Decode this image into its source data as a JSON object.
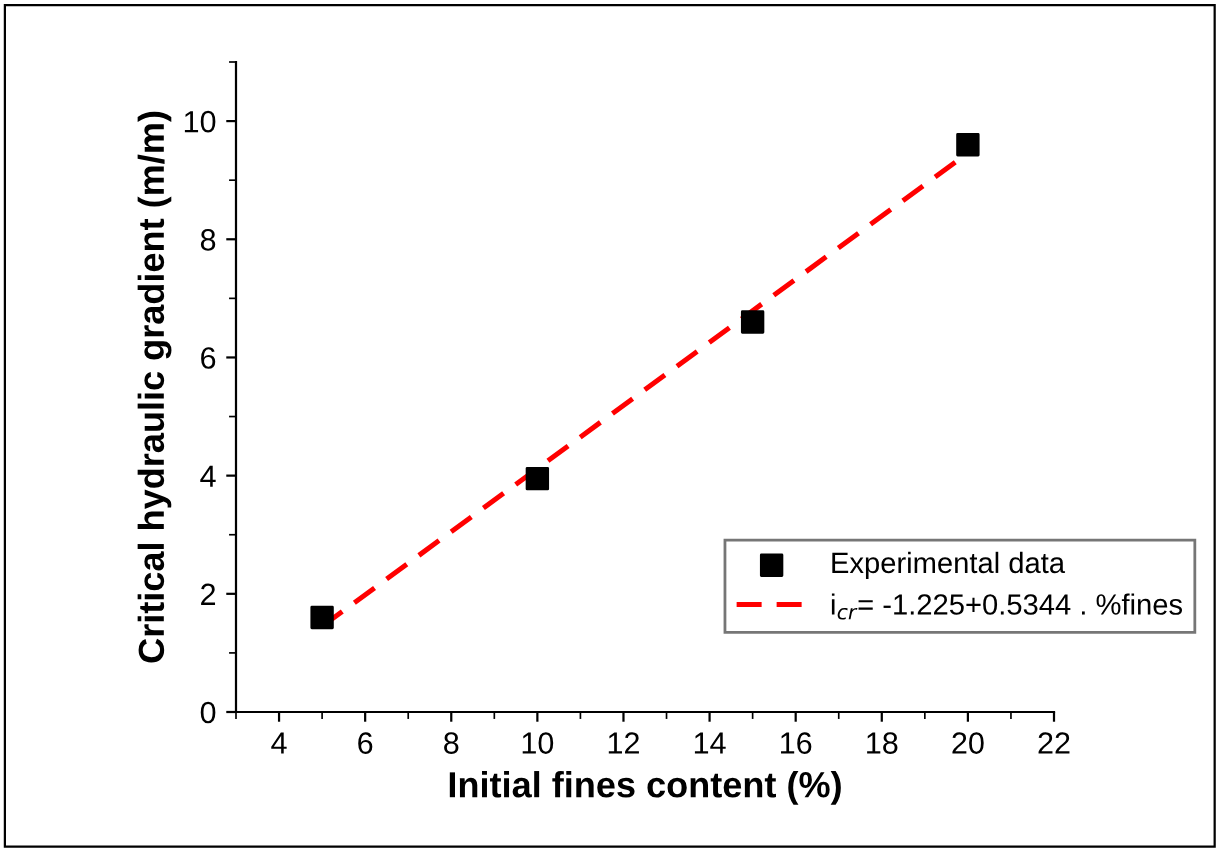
{
  "chart_data": {
    "type": "scatter",
    "xlabel": "Initial fines content (%)",
    "ylabel": "Critical hydraulic gradient (m/m)",
    "xlim": [
      3,
      22
    ],
    "ylim": [
      0,
      11
    ],
    "xticks": [
      4,
      6,
      8,
      10,
      12,
      14,
      16,
      18,
      20,
      22
    ],
    "yticks": [
      0,
      2,
      4,
      6,
      8,
      10
    ],
    "grid": false,
    "legend": "lower right",
    "marker": "square",
    "series": [
      {
        "name": "Experimental data",
        "color": "#000000",
        "x": [
          5,
          10,
          15,
          20
        ],
        "values": [
          1.6,
          3.95,
          6.6,
          9.6
        ]
      },
      {
        "name": "i$_{cr}$= -1.225+0.5344 . %fines",
        "type": "line",
        "color": "#ff0000",
        "x": [
          5,
          20
        ],
        "values": [
          1.45,
          9.46
        ],
        "marker": "none",
        "line_style": "dashed"
      }
    ]
  }
}
